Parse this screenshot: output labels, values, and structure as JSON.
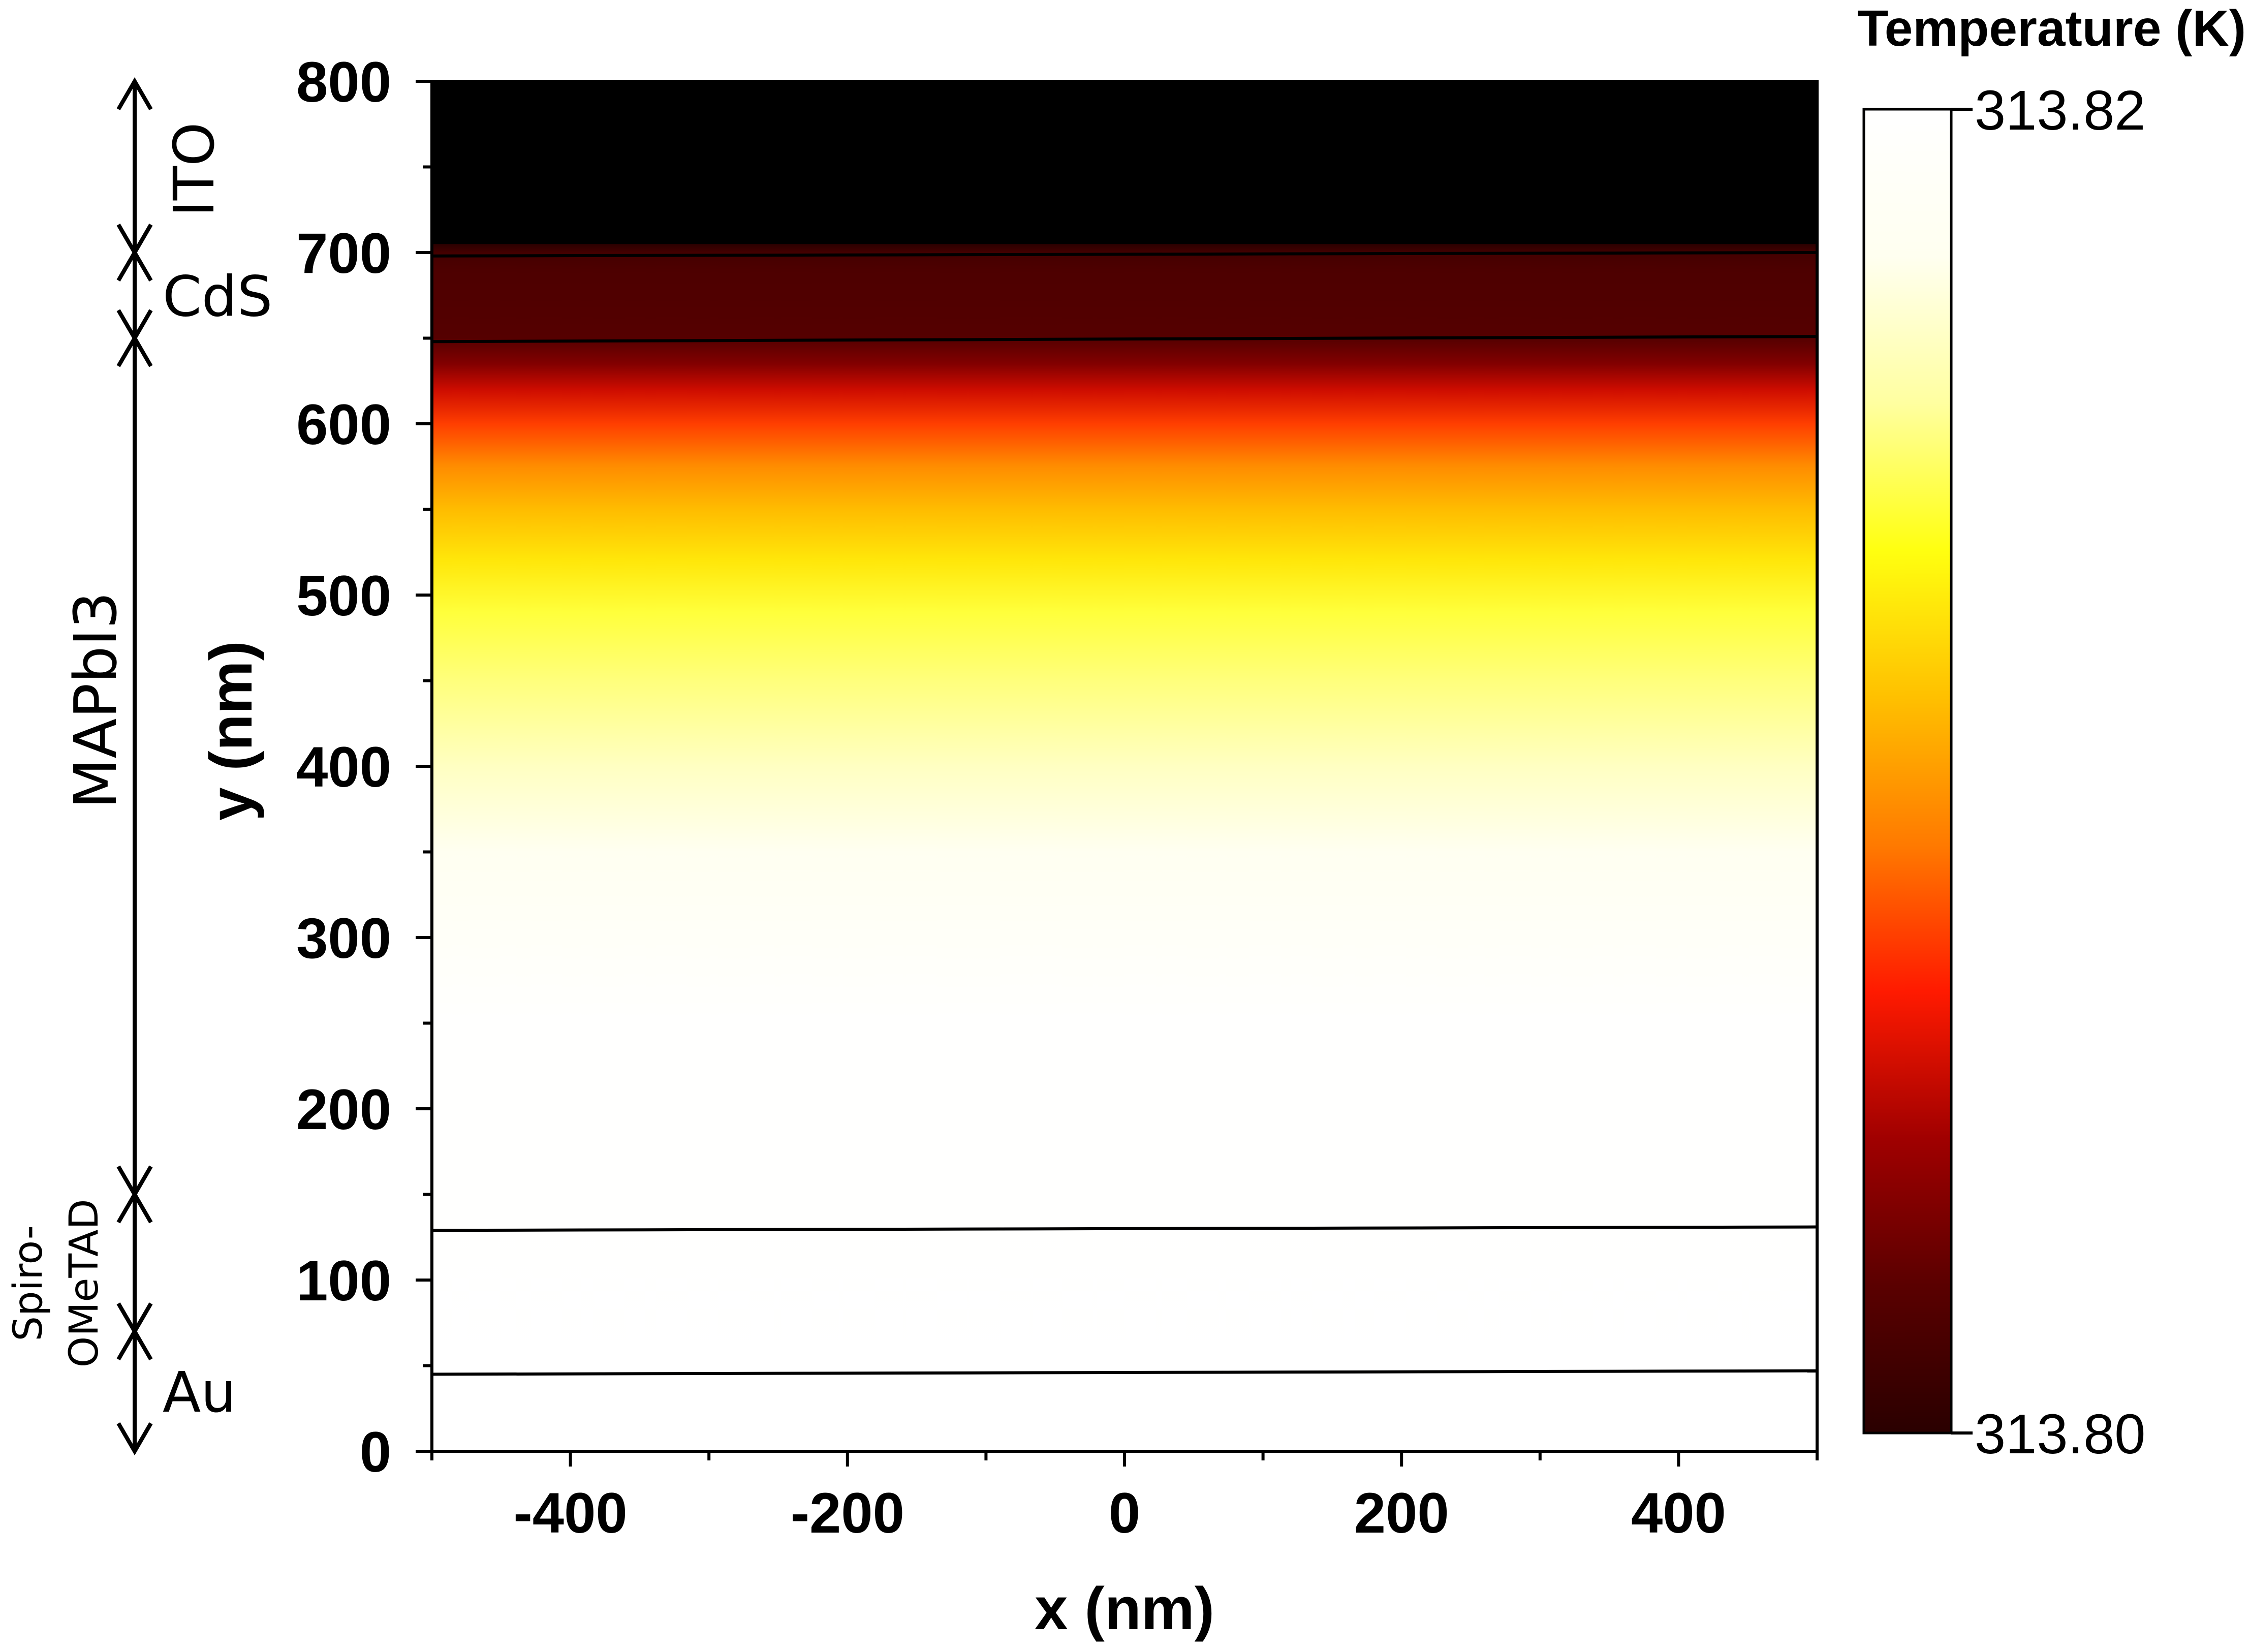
{
  "chart_data": {
    "type": "heatmap",
    "xlabel": "x (nm)",
    "ylabel": "y (nm)",
    "xlim": [
      -500,
      500
    ],
    "ylim": [
      0,
      800
    ],
    "x_ticks": [
      -400,
      -200,
      0,
      200,
      400
    ],
    "y_ticks": [
      0,
      100,
      200,
      300,
      400,
      500,
      600,
      700,
      800
    ],
    "colorbar": {
      "title": "Temperature (K)",
      "max_label": "313.82",
      "min_label": "313.80",
      "range": [
        313.8,
        313.82
      ],
      "colormap": [
        "#2a0000",
        "#5a0000",
        "#a00000",
        "#ff1a00",
        "#ff7a00",
        "#ffc000",
        "#ffff10",
        "#ffffa0",
        "#fffff0",
        "#ffffff"
      ]
    },
    "temperature_profile": {
      "y": [
        800,
        705,
        700,
        690,
        670,
        650,
        635,
        620,
        600,
        575,
        550,
        520,
        490,
        450,
        400,
        350,
        300,
        250,
        0
      ],
      "temperature": [
        313.8,
        313.8,
        313.8012,
        313.8016,
        313.8018,
        313.802,
        313.8035,
        313.8055,
        313.8075,
        313.8095,
        313.811,
        313.8125,
        313.814,
        313.815,
        313.8165,
        313.818,
        313.819,
        313.8198,
        313.82
      ]
    },
    "layer_boundaries": [
      {
        "y_left": 45,
        "y_right": 47
      },
      {
        "y_left": 129,
        "y_right": 131
      },
      {
        "y_left": 648,
        "y_right": 651
      },
      {
        "y_left": 698,
        "y_right": 700
      }
    ],
    "layers": [
      {
        "label": "ITO",
        "y_range": [
          700,
          800
        ]
      },
      {
        "label": "CdS",
        "y_range": [
          650,
          700
        ]
      },
      {
        "label": "MAPbI3",
        "y_range": [
          150,
          650
        ]
      },
      {
        "label_line1": "Spiro-",
        "label_line2": "OMeTAD",
        "y_range": [
          70,
          150
        ]
      },
      {
        "label": "Au",
        "y_range": [
          0,
          70
        ]
      }
    ]
  }
}
